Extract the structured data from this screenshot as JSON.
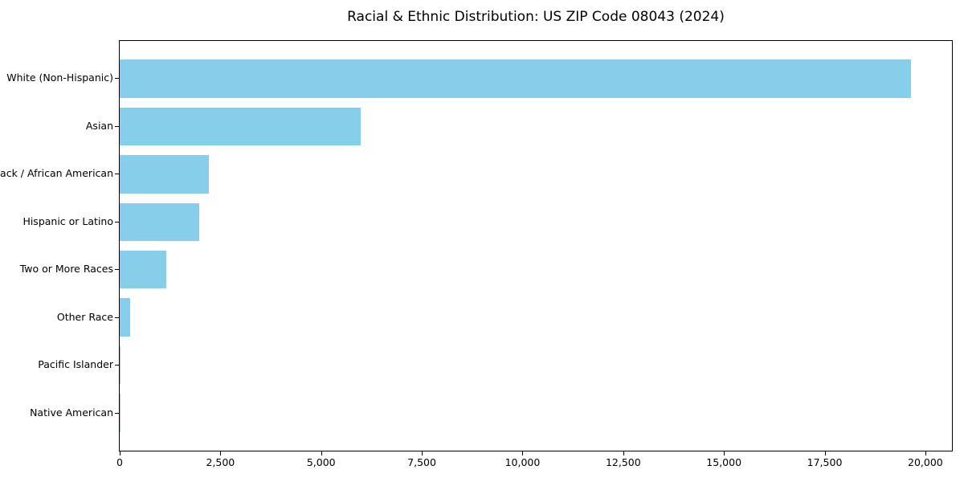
{
  "title": "Racial & Ethnic Distribution: US ZIP Code 08043 (2024)",
  "chart_data": {
    "type": "bar",
    "orientation": "horizontal",
    "title": "Racial & Ethnic Distribution: US ZIP Code 08043 (2024)",
    "xlabel": "",
    "ylabel": "",
    "categories": [
      "White (Non-Hispanic)",
      "Asian",
      "Black / African American",
      "Hispanic or Latino",
      "Two or More Races",
      "Other Race",
      "Pacific Islander",
      "Native American"
    ],
    "values": [
      19650,
      5975,
      2210,
      1980,
      1150,
      250,
      25,
      10
    ],
    "x_ticks": [
      0,
      2500,
      5000,
      7500,
      10000,
      12500,
      15000,
      17500,
      20000
    ],
    "x_tick_labels": [
      "0",
      "2,500",
      "5,000",
      "7,500",
      "10,000",
      "12,500",
      "15,000",
      "17,500",
      "20,000"
    ],
    "xlim": [
      0,
      20660
    ],
    "bar_color": "#87ceeb",
    "grid": false,
    "legend": false
  },
  "colors": {
    "bar": "#87ceeb",
    "axis": "#000000",
    "text": "#000000",
    "background": "#ffffff"
  }
}
